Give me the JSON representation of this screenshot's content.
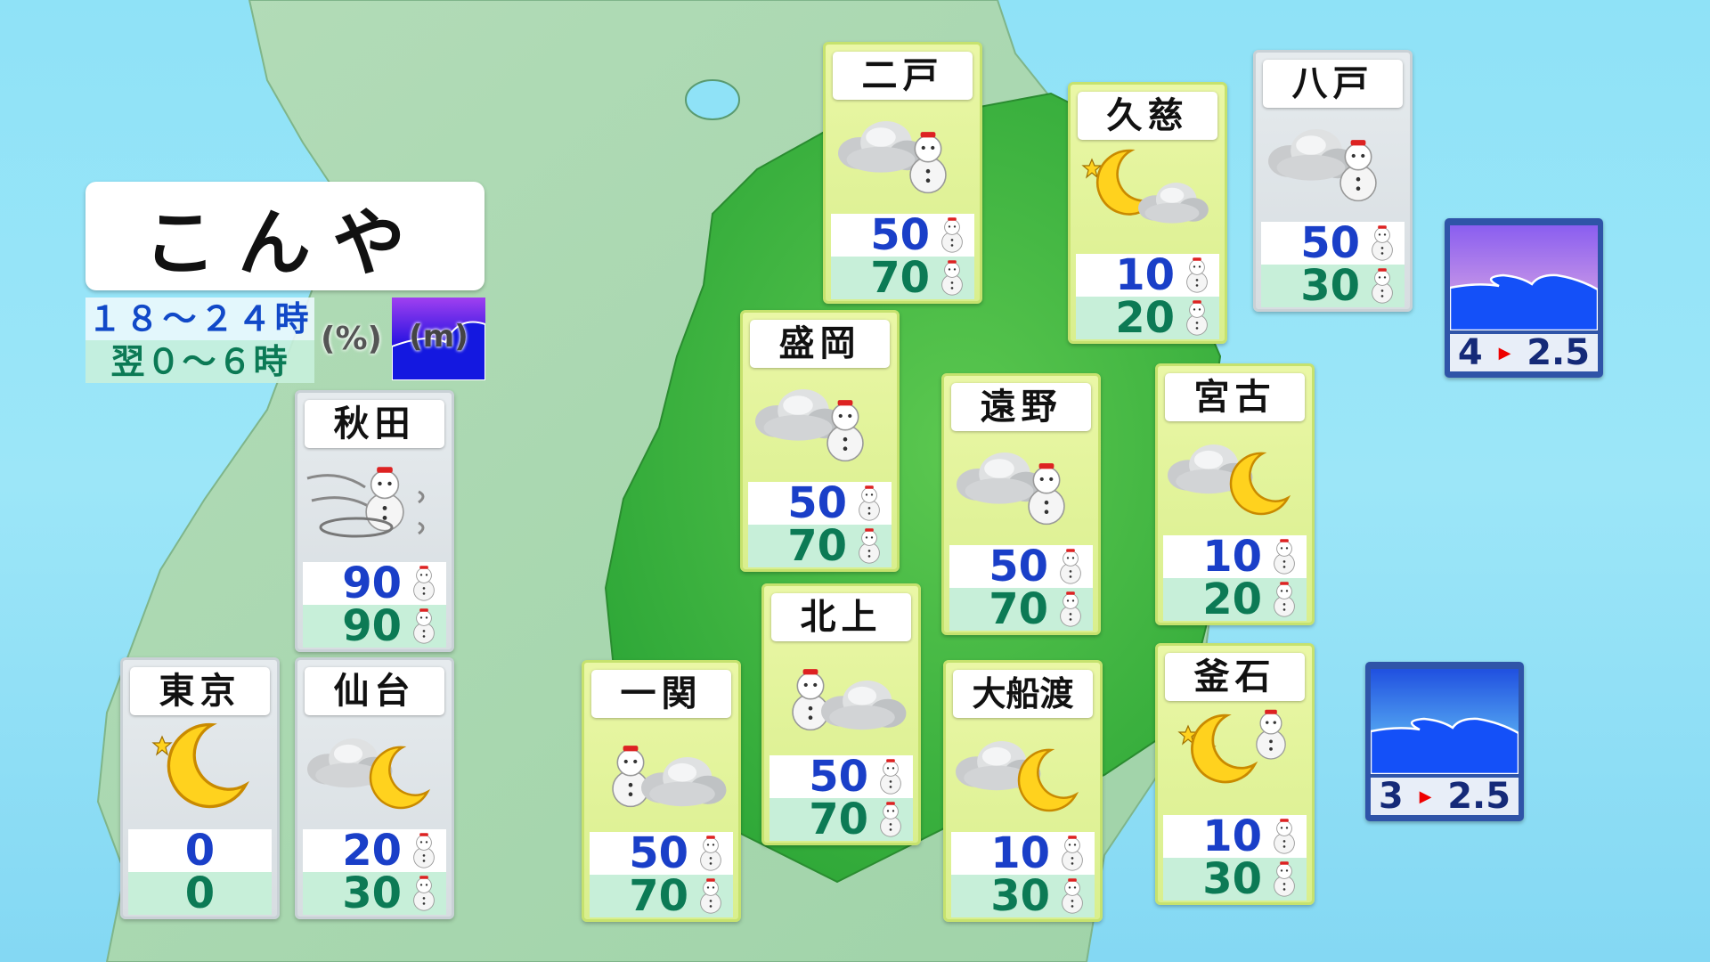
{
  "title": "こんや",
  "legend": {
    "period1": "１８～２４時",
    "period2": "翌０～６時",
    "percent_unit": "(%)",
    "wave_unit": "(m)"
  },
  "colors": {
    "sea": "#9ce6f8",
    "land": "#a8d8b0",
    "iwate": "#3db83d",
    "value_top": "#1a3fc8",
    "value_bottom": "#0c7a55"
  },
  "cities": [
    {
      "name": "二戸",
      "style": "iw",
      "weather": "cloud-snow",
      "pop1": "50",
      "pop2": "70",
      "snow": true
    },
    {
      "name": "久慈",
      "style": "iw",
      "weather": "moon-cloud-stars",
      "pop1": "10",
      "pop2": "20",
      "snow": true
    },
    {
      "name": "八戸",
      "style": "gr",
      "weather": "cloud-snow",
      "pop1": "50",
      "pop2": "30",
      "snow": true
    },
    {
      "name": "盛岡",
      "style": "iw",
      "weather": "cloud-snow",
      "pop1": "50",
      "pop2": "70",
      "snow": true
    },
    {
      "name": "遠野",
      "style": "iw",
      "weather": "cloud-snow",
      "pop1": "50",
      "pop2": "70",
      "snow": true
    },
    {
      "name": "宮古",
      "style": "iw",
      "weather": "cloud-moon",
      "pop1": "10",
      "pop2": "20",
      "snow": true
    },
    {
      "name": "秋田",
      "style": "gr",
      "weather": "snowstorm",
      "pop1": "90",
      "pop2": "90",
      "snow": true
    },
    {
      "name": "北上",
      "style": "iw",
      "weather": "snow-cloud",
      "pop1": "50",
      "pop2": "70",
      "snow": true
    },
    {
      "name": "一関",
      "style": "iw",
      "weather": "snow-cloud",
      "pop1": "50",
      "pop2": "70",
      "snow": true
    },
    {
      "name": "大船渡",
      "style": "iw",
      "weather": "cloud-moon",
      "pop1": "10",
      "pop2": "30",
      "snow": true
    },
    {
      "name": "釜石",
      "style": "iw",
      "weather": "moon-snow-stars",
      "pop1": "10",
      "pop2": "30",
      "snow": true
    },
    {
      "name": "東京",
      "style": "gr",
      "weather": "moon-stars",
      "pop1": "0",
      "pop2": "0",
      "snow": false
    },
    {
      "name": "仙台",
      "style": "gr",
      "weather": "cloud-moon",
      "pop1": "20",
      "pop2": "30",
      "snow": true
    }
  ],
  "waves": [
    {
      "area": "north",
      "from": "4",
      "to": "2.5"
    },
    {
      "area": "south",
      "from": "3",
      "to": "2.5"
    }
  ]
}
